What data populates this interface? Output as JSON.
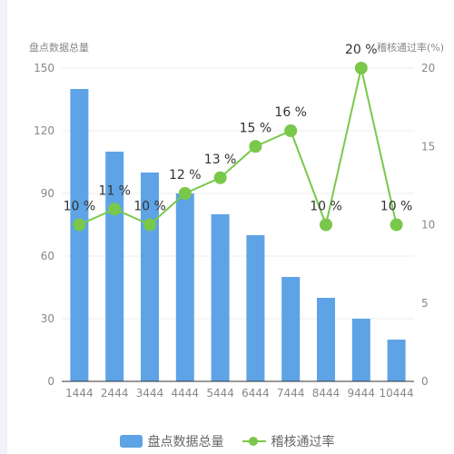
{
  "chart_data": {
    "type": "bar",
    "categories": [
      "1444",
      "2444",
      "3444",
      "4444",
      "5444",
      "6444",
      "7444",
      "8444",
      "9444",
      "10444"
    ],
    "series": [
      {
        "name": "盘点数据总量",
        "type": "bar",
        "axis": "left",
        "values": [
          140,
          110,
          100,
          90,
          80,
          70,
          50,
          40,
          30,
          20
        ],
        "color": "#5ea3e6"
      },
      {
        "name": "稽核通过率",
        "type": "line",
        "axis": "right",
        "values": [
          10,
          11,
          10,
          12,
          13,
          15,
          16,
          10,
          20,
          10
        ],
        "labels": [
          "10 %",
          "11 %",
          "10 %",
          "12 %",
          "13 %",
          "15 %",
          "16 %",
          "10 %",
          "20 %",
          "10 %"
        ],
        "color": "#79c84a"
      }
    ],
    "y_left": {
      "label": "盘点数据总量",
      "min": 0,
      "max": 150,
      "ticks": [
        "0",
        "30",
        "60",
        "90",
        "120",
        "150"
      ]
    },
    "y_right": {
      "label": "稽核通过率(%)",
      "min": 0,
      "max": 20,
      "ticks": [
        "0",
        "5",
        "10",
        "15",
        "20"
      ]
    },
    "grid": true,
    "legend_position": "bottom"
  },
  "legend": {
    "bar_label": "盘点数据总量",
    "line_label": "稽核通过率"
  }
}
